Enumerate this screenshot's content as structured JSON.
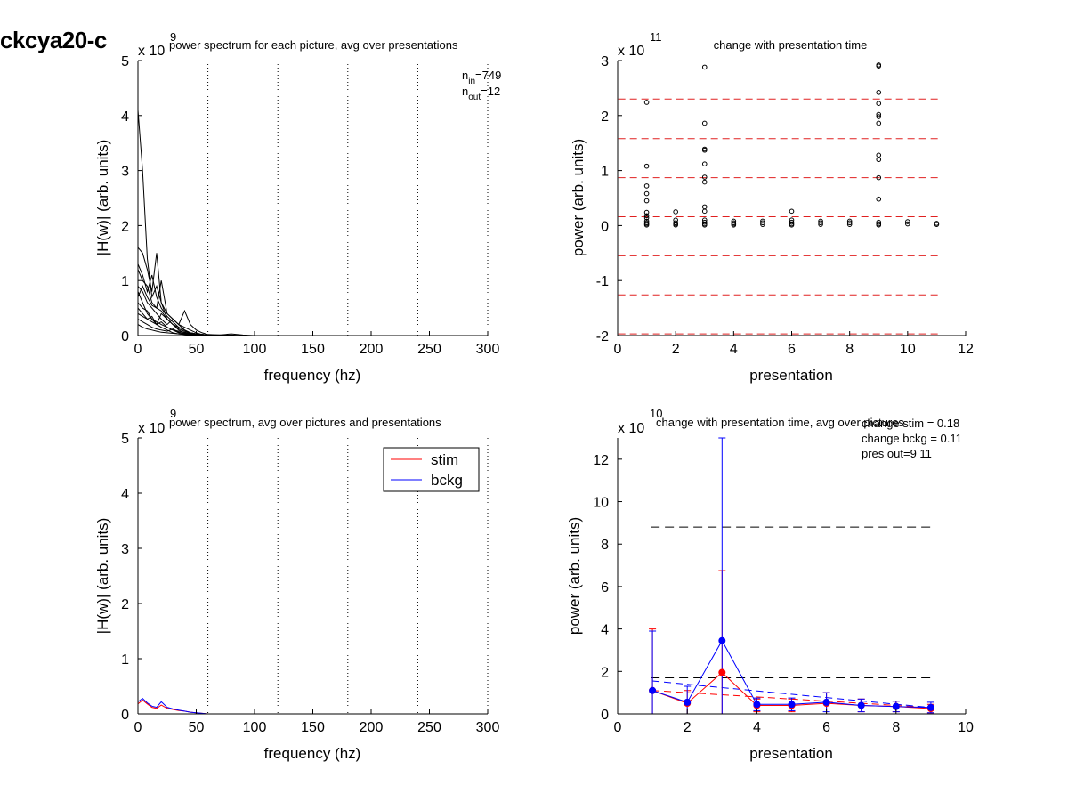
{
  "figure_title": "ckcya20-c",
  "chart_data": [
    {
      "id": "p1",
      "type": "line",
      "title": "power spectrum for each picture, avg over presentations",
      "xlabel": "frequency (hz)",
      "ylabel": "|H(w)| (arb. units)",
      "exponent_label": "x 10",
      "exponent": "9",
      "xlim": [
        0,
        300
      ],
      "ylim": [
        0,
        5
      ],
      "xticks": [
        0,
        50,
        100,
        150,
        200,
        250,
        300
      ],
      "yticks": [
        0,
        1,
        2,
        3,
        4,
        5
      ],
      "vlines": [
        60,
        120,
        180,
        240,
        300
      ],
      "annotations": [
        {
          "text": "n",
          "sub": "in",
          "suffix": "=749"
        },
        {
          "text": "n",
          "sub": "out",
          "suffix": "=12"
        }
      ],
      "x": [
        0,
        4,
        8,
        12,
        16,
        20,
        25,
        30,
        35,
        40,
        45,
        50,
        55,
        60,
        70,
        80,
        90,
        100,
        300
      ],
      "series": [
        {
          "values": [
            4.1,
            3.0,
            1.4,
            0.7,
            0.9,
            0.6,
            0.3,
            0.2,
            0.15,
            0.1,
            0.05,
            0.03,
            0.02,
            0.01,
            0.01,
            0.01,
            0.0,
            0.0,
            0.0
          ]
        },
        {
          "values": [
            1.6,
            1.5,
            1.2,
            0.8,
            1.5,
            0.6,
            0.4,
            0.3,
            0.2,
            0.15,
            0.1,
            0.05,
            0.02,
            0.01,
            0.01,
            0.0,
            0.0,
            0.0,
            0.0
          ]
        },
        {
          "values": [
            1.2,
            1.0,
            0.9,
            0.6,
            0.5,
            1.0,
            0.4,
            0.3,
            0.2,
            0.1,
            0.05,
            0.03,
            0.02,
            0.01,
            0.0,
            0.0,
            0.0,
            0.0,
            0.0
          ]
        },
        {
          "values": [
            0.9,
            0.8,
            0.6,
            0.5,
            0.4,
            0.3,
            0.2,
            0.3,
            0.2,
            0.45,
            0.2,
            0.1,
            0.05,
            0.02,
            0.01,
            0.03,
            0.01,
            0.0,
            0.0
          ]
        },
        {
          "values": [
            0.8,
            0.6,
            0.4,
            0.3,
            0.2,
            0.4,
            0.3,
            0.2,
            0.1,
            0.05,
            0.03,
            0.02,
            0.01,
            0.0,
            0.0,
            0.0,
            0.0,
            0.0,
            0.0
          ]
        },
        {
          "values": [
            0.6,
            0.5,
            0.45,
            0.3,
            0.25,
            0.2,
            0.15,
            0.1,
            0.08,
            0.06,
            0.04,
            0.02,
            0.01,
            0.01,
            0.0,
            0.0,
            0.0,
            0.0,
            0.0
          ]
        },
        {
          "values": [
            0.5,
            0.4,
            0.3,
            0.35,
            0.2,
            0.15,
            0.1,
            0.05,
            0.03,
            0.02,
            0.01,
            0.01,
            0.0,
            0.0,
            0.0,
            0.0,
            0.0,
            0.0,
            0.0
          ]
        },
        {
          "values": [
            0.4,
            0.35,
            0.3,
            0.25,
            0.2,
            0.25,
            0.15,
            0.1,
            0.05,
            0.03,
            0.02,
            0.01,
            0.01,
            0.0,
            0.0,
            0.0,
            0.0,
            0.0,
            0.0
          ]
        },
        {
          "values": [
            0.3,
            0.25,
            0.2,
            0.15,
            0.12,
            0.1,
            0.08,
            0.12,
            0.06,
            0.04,
            0.02,
            0.01,
            0.01,
            0.0,
            0.0,
            0.0,
            0.0,
            0.0,
            0.0
          ]
        },
        {
          "values": [
            0.2,
            0.15,
            0.12,
            0.1,
            0.08,
            0.06,
            0.05,
            0.04,
            0.03,
            0.02,
            0.01,
            0.01,
            0.0,
            0.0,
            0.0,
            0.0,
            0.0,
            0.0,
            0.0
          ]
        },
        {
          "values": [
            1.3,
            1.1,
            0.8,
            1.1,
            0.7,
            0.5,
            0.35,
            0.25,
            0.15,
            0.1,
            0.05,
            0.03,
            0.02,
            0.01,
            0.0,
            0.0,
            0.0,
            0.0,
            0.0
          ]
        },
        {
          "values": [
            0.7,
            0.9,
            0.7,
            0.55,
            0.5,
            0.45,
            0.3,
            0.2,
            0.12,
            0.08,
            0.05,
            0.03,
            0.02,
            0.01,
            0.0,
            0.0,
            0.0,
            0.0,
            0.0
          ]
        }
      ]
    },
    {
      "id": "p2",
      "type": "scatter",
      "title": "change with presentation time",
      "xlabel": "presentation",
      "ylabel": "power (arb. units)",
      "exponent_label": "x 10",
      "exponent": "11",
      "xlim": [
        0,
        12
      ],
      "ylim": [
        -2,
        3
      ],
      "xticks": [
        0,
        2,
        4,
        6,
        8,
        10,
        12
      ],
      "yticks": [
        -2,
        -1,
        0,
        1,
        2,
        3
      ],
      "hlines": [
        2.3,
        1.58,
        0.87,
        0.16,
        -0.55,
        -1.26,
        -1.97
      ],
      "points": [
        [
          1,
          2.24
        ],
        [
          1,
          1.08
        ],
        [
          1,
          0.72
        ],
        [
          1,
          0.58
        ],
        [
          1,
          0.45
        ],
        [
          1,
          0.24
        ],
        [
          1,
          0.18
        ],
        [
          1,
          0.14
        ],
        [
          1,
          0.08
        ],
        [
          1,
          0.05
        ],
        [
          1,
          0.03
        ],
        [
          1,
          0.01
        ],
        [
          2,
          0.25
        ],
        [
          2,
          0.1
        ],
        [
          2,
          0.05
        ],
        [
          2,
          0.03
        ],
        [
          2,
          0.01
        ],
        [
          3,
          2.88
        ],
        [
          3,
          1.86
        ],
        [
          3,
          1.39
        ],
        [
          3,
          1.37
        ],
        [
          3,
          1.12
        ],
        [
          3,
          0.88
        ],
        [
          3,
          0.79
        ],
        [
          3,
          0.34
        ],
        [
          3,
          0.26
        ],
        [
          3,
          0.1
        ],
        [
          3,
          0.06
        ],
        [
          3,
          0.03
        ],
        [
          3,
          0.01
        ],
        [
          4,
          0.08
        ],
        [
          4,
          0.05
        ],
        [
          4,
          0.03
        ],
        [
          4,
          0.01
        ],
        [
          5,
          0.08
        ],
        [
          5,
          0.05
        ],
        [
          5,
          0.02
        ],
        [
          6,
          0.26
        ],
        [
          6,
          0.1
        ],
        [
          6,
          0.06
        ],
        [
          6,
          0.03
        ],
        [
          6,
          0.01
        ],
        [
          7,
          0.08
        ],
        [
          7,
          0.05
        ],
        [
          7,
          0.02
        ],
        [
          8,
          0.08
        ],
        [
          8,
          0.05
        ],
        [
          8,
          0.02
        ],
        [
          9,
          2.92
        ],
        [
          9,
          2.9
        ],
        [
          9,
          2.42
        ],
        [
          9,
          2.22
        ],
        [
          9,
          2.02
        ],
        [
          9,
          1.98
        ],
        [
          9,
          1.86
        ],
        [
          9,
          1.28
        ],
        [
          9,
          1.2
        ],
        [
          9,
          0.87
        ],
        [
          9,
          0.48
        ],
        [
          9,
          0.06
        ],
        [
          9,
          0.03
        ],
        [
          9,
          0.01
        ],
        [
          10,
          0.07
        ],
        [
          10,
          0.03
        ],
        [
          11,
          0.04
        ],
        [
          11,
          0.02
        ]
      ]
    },
    {
      "id": "p3",
      "type": "line",
      "title": "power spectrum, avg over pictures and presentations",
      "xlabel": "frequency (hz)",
      "ylabel": "|H(w)| (arb. units)",
      "exponent_label": "x 10",
      "exponent": "9",
      "xlim": [
        0,
        300
      ],
      "ylim": [
        0,
        5
      ],
      "xticks": [
        0,
        50,
        100,
        150,
        200,
        250,
        300
      ],
      "yticks": [
        0,
        1,
        2,
        3,
        4,
        5
      ],
      "vlines": [
        60,
        120,
        180,
        240,
        300
      ],
      "legend_position": "top-right",
      "x": [
        0,
        4,
        8,
        12,
        16,
        20,
        25,
        30,
        35,
        40,
        45,
        50,
        55,
        60,
        100,
        300
      ],
      "series": [
        {
          "name": "stim",
          "color": "#ff0000",
          "values": [
            0.18,
            0.25,
            0.18,
            0.12,
            0.1,
            0.16,
            0.1,
            0.08,
            0.06,
            0.05,
            0.03,
            0.02,
            0.01,
            0.0,
            0.0,
            0.0
          ]
        },
        {
          "name": "bckg",
          "color": "#0000ff",
          "values": [
            0.22,
            0.28,
            0.2,
            0.14,
            0.12,
            0.22,
            0.12,
            0.09,
            0.07,
            0.05,
            0.03,
            0.02,
            0.01,
            0.0,
            0.0,
            0.0
          ]
        }
      ]
    },
    {
      "id": "p4",
      "type": "line",
      "title": "change with presentation time, avg over pictures",
      "xlabel": "presentation",
      "ylabel": "power (arb. units)",
      "exponent_label": "x 10",
      "exponent": "10",
      "xlim": [
        0,
        10
      ],
      "ylim": [
        0,
        13
      ],
      "xticks": [
        0,
        2,
        4,
        6,
        8,
        10
      ],
      "yticks": [
        0,
        2,
        4,
        6,
        8,
        10,
        12
      ],
      "annotations": [
        "change stim = 0.18",
        "change bckg = 0.11",
        "pres out=9 11"
      ],
      "hlines": [
        8.8,
        1.7
      ],
      "x": [
        1,
        2,
        3,
        4,
        5,
        6,
        7,
        8,
        9
      ],
      "series": [
        {
          "name": "stim",
          "color": "#ff0000",
          "values": [
            1.1,
            0.5,
            1.95,
            0.4,
            0.4,
            0.5,
            0.4,
            0.35,
            0.25
          ],
          "err": [
            2.9,
            0.6,
            4.8,
            0.3,
            0.3,
            0.5,
            0.3,
            0.25,
            0.2
          ]
        },
        {
          "name": "bckg",
          "color": "#0000ff",
          "values": [
            1.1,
            0.55,
            3.45,
            0.45,
            0.45,
            0.55,
            0.4,
            0.35,
            0.3
          ],
          "err": [
            2.8,
            0.75,
            10.0,
            0.3,
            0.3,
            0.45,
            0.3,
            0.25,
            0.25
          ]
        }
      ],
      "fit_lines": [
        {
          "color": "#ff0000",
          "from": [
            1,
            1.1
          ],
          "to": [
            9,
            0.3
          ]
        },
        {
          "color": "#0000ff",
          "from": [
            1,
            1.55
          ],
          "to": [
            9,
            0.3
          ]
        }
      ]
    }
  ]
}
